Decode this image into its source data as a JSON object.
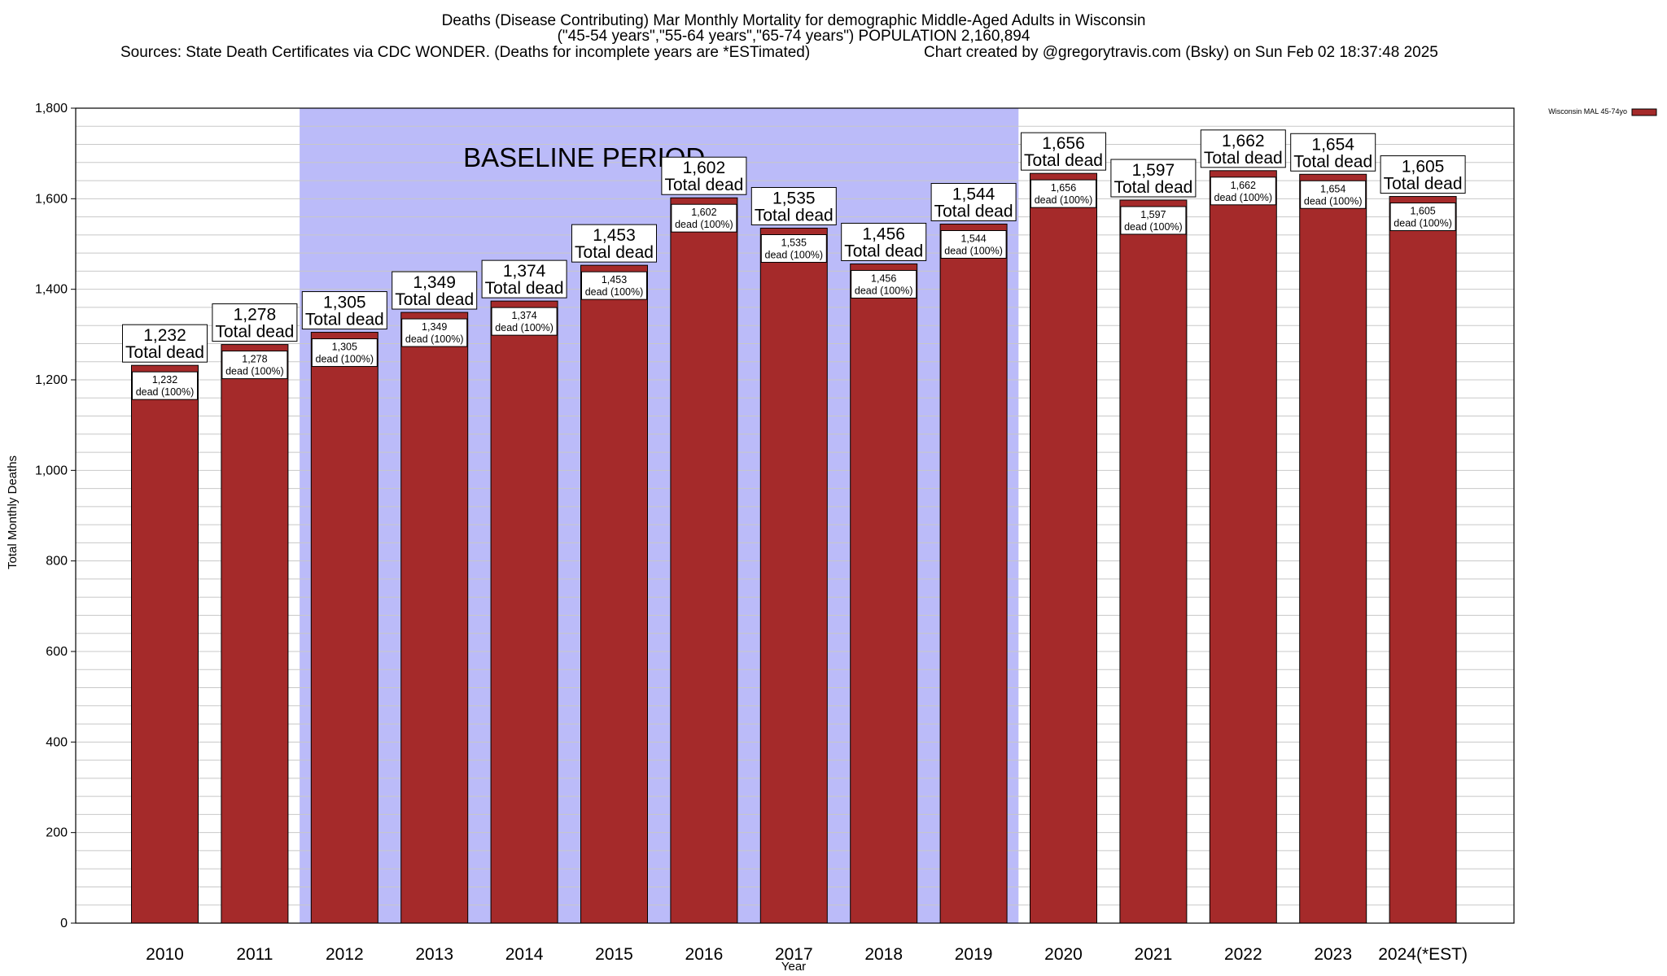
{
  "chart_data": {
    "type": "bar",
    "title": "Deaths (Disease Contributing) Mar Monthly Mortality for demographic Middle-Aged Adults in Wisconsin",
    "subtitle": "(\"45-54 years\",\"55-64 years\",\"65-74 years\") POPULATION 2,160,894",
    "sources": "Sources: State Death Certificates via CDC WONDER. (Deaths for incomplete years are *ESTimated)",
    "credit": "Chart created by @gregorytravis.com (Bsky) on Sun Feb 02 18:37:48 2025",
    "xlabel": "Year",
    "ylabel": "Total Monthly Deaths",
    "ylim": [
      0,
      1800
    ],
    "yticks": [
      0,
      200,
      400,
      600,
      800,
      1000,
      1200,
      1400,
      1600,
      1800
    ],
    "ytick_labels": [
      "0",
      "200",
      "400",
      "600",
      "800",
      "1,000",
      "1,200",
      "1,400",
      "1,600",
      "1,800"
    ],
    "grid": true,
    "legend": {
      "placement": "top-right",
      "entries": [
        "Wisconsin MAL 45-74yo"
      ]
    },
    "categories": [
      "2010",
      "2011",
      "2012",
      "2013",
      "2014",
      "2015",
      "2016",
      "2017",
      "2018",
      "2019",
      "2020",
      "2021",
      "2022",
      "2023",
      "2024(*EST)"
    ],
    "series": [
      {
        "name": "Wisconsin MAL 45-74yo",
        "values": [
          1232,
          1278,
          1305,
          1349,
          1374,
          1453,
          1602,
          1535,
          1456,
          1544,
          1656,
          1597,
          1662,
          1654,
          1605
        ]
      }
    ],
    "top_labels": [
      "1,232",
      "1,278",
      "1,305",
      "1,349",
      "1,374",
      "1,453",
      "1,602",
      "1,535",
      "1,456",
      "1,544",
      "1,656",
      "1,597",
      "1,662",
      "1,654",
      "1,605"
    ],
    "top_label_suffix": "Total dead",
    "inner_labels": [
      "1,232",
      "1,278",
      "1,305",
      "1,349",
      "1,374",
      "1,453",
      "1,602",
      "1,535",
      "1,456",
      "1,544",
      "1,656",
      "1,597",
      "1,662",
      "1,654",
      "1,605"
    ],
    "inner_label_suffix": "dead (100%)",
    "baseline_period": {
      "label": "BASELINE PERIOD",
      "start": "2012",
      "end": "2019"
    },
    "colors": {
      "bar": "#a52a2a",
      "baseline_shade": "#bbbbf9",
      "grid": "#c8c8c8",
      "axis": "#000000"
    }
  }
}
